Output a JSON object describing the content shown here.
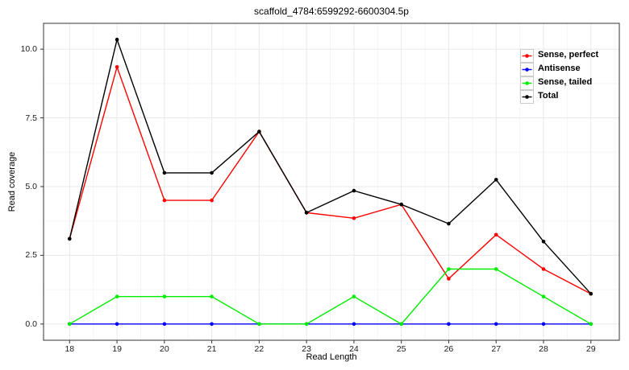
{
  "chart_data": {
    "type": "line",
    "title": "scaffold_4784:6599292-6600304.5p",
    "xlabel": "Read Length",
    "ylabel": "Read coverage",
    "x": [
      18,
      19,
      20,
      21,
      22,
      23,
      24,
      25,
      26,
      27,
      28,
      29
    ],
    "series": [
      {
        "name": "Sense, perfect",
        "color": "#ff0000",
        "values": [
          3.1,
          9.35,
          4.5,
          4.5,
          7.0,
          4.05,
          3.85,
          4.35,
          1.65,
          3.25,
          2.0,
          1.1
        ]
      },
      {
        "name": "Antisense",
        "color": "#0000ff",
        "values": [
          0,
          0,
          0,
          0,
          0,
          0,
          0,
          0,
          0,
          0,
          0,
          0
        ]
      },
      {
        "name": "Sense, tailed",
        "color": "#00ee00",
        "values": [
          0,
          1,
          1,
          1,
          0,
          0,
          1,
          0,
          2,
          2,
          1,
          0
        ]
      },
      {
        "name": "Total",
        "color": "#000000",
        "values": [
          3.1,
          10.35,
          5.5,
          5.5,
          7.0,
          4.05,
          4.85,
          4.35,
          3.65,
          5.25,
          3.0,
          1.1
        ]
      }
    ],
    "xticks": [
      18,
      19,
      20,
      21,
      22,
      23,
      24,
      25,
      26,
      27,
      28,
      29
    ],
    "yticks": [
      {
        "value": 0,
        "label": "0.0"
      },
      {
        "value": 2.5,
        "label": "2.5"
      },
      {
        "value": 5,
        "label": "5.0"
      },
      {
        "value": 7.5,
        "label": "7.5"
      },
      {
        "value": 10,
        "label": "10.0"
      }
    ],
    "xlim": [
      17.45,
      29.6
    ],
    "ylim": [
      -0.59,
      10.94
    ],
    "grid": {
      "major_color": "#e8e8e8",
      "minor_color": "#f5f5f5",
      "minor_x": [
        18.5,
        19.5,
        20.5,
        21.5,
        22.5,
        23.5,
        24.5,
        25.5,
        26.5,
        27.5,
        28.5,
        29.5
      ],
      "minor_y": [
        1.25,
        3.75,
        6.25,
        8.75
      ]
    },
    "legend_position": "top-right"
  },
  "style": {
    "panel_border": "#333333",
    "tick_color": "#333333",
    "background": "#ffffff"
  }
}
